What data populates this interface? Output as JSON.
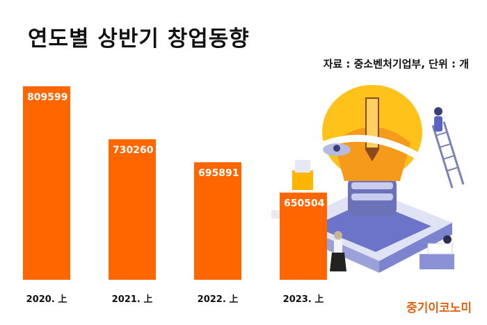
{
  "header": {
    "title": "연도별 상반기 창업동향",
    "source": "자료 : 중소벤처기업부, 단위 : 개"
  },
  "branding": {
    "logo_text": "중기이코노미"
  },
  "colors": {
    "bar": "#ff6600",
    "value_label": "#ffffff",
    "tick_label": "#111111",
    "brand": "#e2620f"
  },
  "chart_data": {
    "type": "bar",
    "title": "연도별 상반기 창업동향",
    "xlabel": "",
    "ylabel": "",
    "categories": [
      "2020. 上",
      "2021. 上",
      "2022. 上",
      "2023. 上"
    ],
    "values": [
      809599,
      730260,
      695891,
      650504
    ],
    "ylim": [
      520000,
      820000
    ],
    "grid": false,
    "legend": "none"
  }
}
